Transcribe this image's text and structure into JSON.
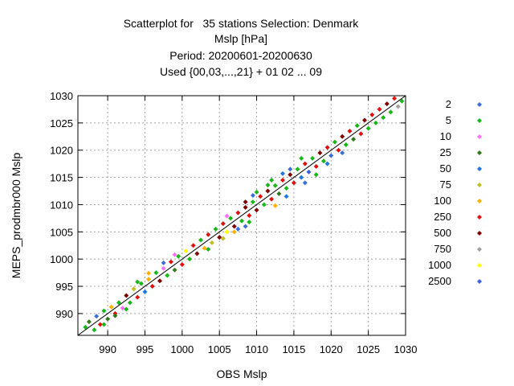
{
  "chart_data": {
    "type": "scatter",
    "title_lines": [
      "Scatterplot for   35 stations Selection: Denmark",
      "Mslp [hPa]",
      "Period: 20200601-20200630",
      "Used {00,03,...,21} + 01 02 ... 09"
    ],
    "xlabel": "OBS Mslp",
    "ylabel": "MEPS_prodmbr000 Mslp",
    "xlim": [
      986,
      1030
    ],
    "ylim": [
      986,
      1030
    ],
    "xticks": [
      990,
      995,
      1000,
      1005,
      1010,
      1015,
      1020,
      1025,
      1030
    ],
    "yticks": [
      990,
      995,
      1000,
      1005,
      1010,
      1015,
      1020,
      1025,
      1030
    ],
    "grid": true,
    "reference_line": "y = x",
    "legend_position": "right",
    "series": [
      {
        "name": "2",
        "color": "#3a6fd8"
      },
      {
        "name": "5",
        "color": "#18b818"
      },
      {
        "name": "10",
        "color": "#ff70ff"
      },
      {
        "name": "25",
        "color": "#2f7a18"
      },
      {
        "name": "50",
        "color": "#1f78e0"
      },
      {
        "name": "75",
        "color": "#c0c020"
      },
      {
        "name": "100",
        "color": "#ffb000"
      },
      {
        "name": "250",
        "color": "#e01010"
      },
      {
        "name": "500",
        "color": "#800000"
      },
      {
        "name": "750",
        "color": "#a0a0a0"
      },
      {
        "name": "1000",
        "color": "#ffff00"
      },
      {
        "name": "2500",
        "color": "#3a60e0"
      }
    ],
    "points": [
      [
        987.0,
        987.5,
        1
      ],
      [
        987.5,
        988.5,
        3
      ],
      [
        988.2,
        987.0,
        1
      ],
      [
        988.5,
        989.5,
        0
      ],
      [
        989.0,
        988.0,
        7
      ],
      [
        989.5,
        990.5,
        1
      ],
      [
        990.0,
        989.0,
        3
      ],
      [
        990.5,
        991.2,
        6
      ],
      [
        991.0,
        990.0,
        7
      ],
      [
        991.5,
        992.0,
        1
      ],
      [
        992.0,
        991.0,
        2
      ],
      [
        992.5,
        993.3,
        8
      ],
      [
        993.0,
        992.0,
        1
      ],
      [
        993.5,
        994.5,
        5
      ],
      [
        994.0,
        993.0,
        7
      ],
      [
        994.5,
        995.5,
        1
      ],
      [
        995.0,
        994.0,
        4
      ],
      [
        995.5,
        996.3,
        6
      ],
      [
        996.0,
        995.0,
        7
      ],
      [
        996.5,
        997.5,
        1
      ],
      [
        997.0,
        996.0,
        8
      ],
      [
        997.5,
        998.3,
        2
      ],
      [
        998.0,
        997.0,
        1
      ],
      [
        998.5,
        999.5,
        7
      ],
      [
        999.0,
        998.0,
        3
      ],
      [
        999.5,
        1000.5,
        1
      ],
      [
        1000.0,
        999.0,
        7
      ],
      [
        1000.5,
        1001.5,
        10
      ],
      [
        1001.0,
        1000.0,
        1
      ],
      [
        1001.5,
        1002.5,
        7
      ],
      [
        1002.0,
        1001.0,
        8
      ],
      [
        1002.5,
        1003.5,
        1
      ],
      [
        1003.0,
        1002.0,
        6
      ],
      [
        1003.5,
        1004.5,
        7
      ],
      [
        1004.0,
        1003.0,
        5
      ],
      [
        1004.5,
        1005.5,
        1
      ],
      [
        1005.0,
        1004.0,
        8
      ],
      [
        1005.5,
        1006.5,
        7
      ],
      [
        1006.0,
        1005.0,
        10
      ],
      [
        1006.5,
        1007.5,
        1
      ],
      [
        1007.0,
        1006.0,
        8
      ],
      [
        1007.5,
        1008.5,
        7
      ],
      [
        1008.0,
        1007.0,
        1
      ],
      [
        1008.5,
        1009.5,
        8
      ],
      [
        1009.0,
        1008.0,
        7
      ],
      [
        1009.5,
        1010.5,
        1
      ],
      [
        1010.0,
        1009.0,
        8
      ],
      [
        1010.5,
        1011.5,
        7
      ],
      [
        1011.0,
        1010.0,
        1
      ],
      [
        1011.5,
        1012.5,
        8
      ],
      [
        1012.0,
        1011.0,
        7
      ],
      [
        1012.5,
        1013.5,
        1
      ],
      [
        1013.0,
        1012.0,
        3
      ],
      [
        1013.5,
        1014.5,
        7
      ],
      [
        1014.0,
        1013.0,
        1
      ],
      [
        1014.5,
        1015.5,
        8
      ],
      [
        1015.0,
        1014.0,
        7
      ],
      [
        1015.5,
        1016.5,
        1
      ],
      [
        1016.0,
        1015.0,
        4
      ],
      [
        1016.5,
        1017.5,
        7
      ],
      [
        1017.0,
        1016.0,
        11
      ],
      [
        1017.5,
        1018.5,
        1
      ],
      [
        1018.0,
        1017.0,
        7
      ],
      [
        1018.5,
        1019.5,
        8
      ],
      [
        1019.0,
        1018.0,
        1
      ],
      [
        1019.5,
        1020.5,
        7
      ],
      [
        1020.0,
        1019.0,
        0
      ],
      [
        1020.5,
        1021.5,
        1
      ],
      [
        1021.0,
        1020.0,
        7
      ],
      [
        1021.5,
        1022.5,
        8
      ],
      [
        1022.0,
        1021.0,
        1
      ],
      [
        1022.5,
        1023.5,
        7
      ],
      [
        1023.0,
        1022.0,
        3
      ],
      [
        1023.5,
        1024.5,
        1
      ],
      [
        1024.0,
        1023.0,
        7
      ],
      [
        1024.5,
        1025.5,
        8
      ],
      [
        1025.0,
        1024.0,
        1
      ],
      [
        1025.5,
        1026.5,
        7
      ],
      [
        1026.0,
        1025.0,
        1
      ],
      [
        1026.5,
        1027.5,
        7
      ],
      [
        1027.0,
        1026.0,
        1
      ],
      [
        1027.5,
        1028.5,
        8
      ],
      [
        1028.0,
        1027.0,
        1
      ],
      [
        1028.5,
        1029.5,
        7
      ],
      [
        1029.0,
        1028.0,
        9
      ],
      [
        1029.5,
        1029.0,
        1
      ],
      [
        1007.5,
        1005.5,
        0
      ],
      [
        1008.5,
        1006.0,
        0
      ],
      [
        1009.0,
        1006.8,
        1
      ],
      [
        1014.0,
        1011.5,
        4
      ],
      [
        1016.5,
        1014.0,
        0
      ],
      [
        1018.0,
        1015.5,
        1
      ],
      [
        1019.5,
        1017.5,
        4
      ],
      [
        1021.5,
        1019.5,
        0
      ],
      [
        1012.5,
        1009.8,
        6
      ],
      [
        1007.0,
        1005.0,
        6
      ],
      [
        1005.5,
        1003.8,
        5
      ],
      [
        1003.5,
        1001.8,
        1
      ],
      [
        1012.0,
        1014.5,
        1
      ],
      [
        1014.5,
        1016.5,
        0
      ],
      [
        1016.0,
        1018.5,
        1
      ],
      [
        1010.0,
        1012.3,
        1
      ],
      [
        1008.5,
        1010.5,
        8
      ],
      [
        1006.0,
        1007.9,
        2
      ],
      [
        1009.5,
        1011.7,
        0
      ],
      [
        1011.5,
        1013.6,
        1
      ],
      [
        1013.5,
        1015.7,
        4
      ],
      [
        989.5,
        988.0,
        1
      ],
      [
        991.0,
        989.6,
        3
      ],
      [
        992.5,
        990.8,
        1
      ],
      [
        994.0,
        995.8,
        1
      ],
      [
        995.5,
        997.4,
        6
      ],
      [
        999.0,
        1000.8,
        2
      ],
      [
        997.5,
        999.3,
        0
      ]
    ]
  }
}
